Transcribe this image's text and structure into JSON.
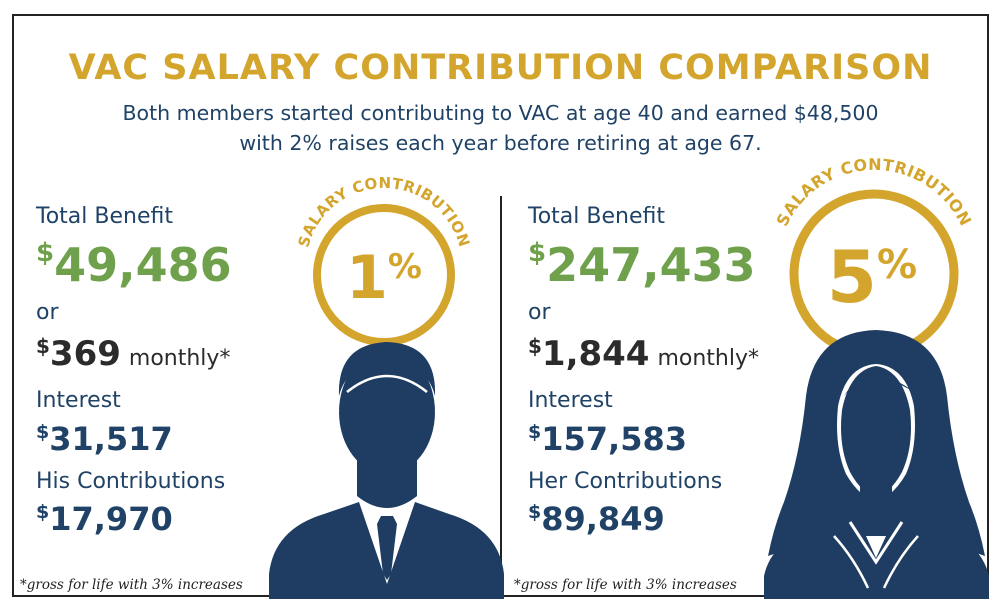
{
  "title": "VAC SALARY CONTRIBUTION COMPARISON",
  "subtitle_line1": "Both members started contributing to VAC at age 40 and earned $48,500",
  "subtitle_line2": "with 2% raises each year before retiring at age 67.",
  "currency_symbol": "$",
  "left": {
    "badge_label": "SALARY CONTRIBUTION",
    "badge_value": "1",
    "badge_percent": "%",
    "total_benefit_label": "Total Benefit",
    "total_benefit_value": "49,486",
    "or_label": "or",
    "monthly_value": "369",
    "monthly_label": "monthly*",
    "interest_label": "Interest",
    "interest_value": "31,517",
    "contributions_label": "His Contributions",
    "contributions_value": "17,970",
    "footnote": "*gross for life with 3% increases",
    "avatar_icon": "man-avatar-icon"
  },
  "right": {
    "badge_label": "SALARY CONTRIBUTION",
    "badge_value": "5",
    "badge_percent": "%",
    "total_benefit_label": "Total Benefit",
    "total_benefit_value": "247,433",
    "or_label": "or",
    "monthly_value": "1,844",
    "monthly_label": "monthly*",
    "interest_label": "Interest",
    "interest_value": "157,583",
    "contributions_label": "Her Contributions",
    "contributions_value": "89,849",
    "footnote": "*gross for life with 3% increases",
    "avatar_icon": "woman-avatar-icon"
  },
  "colors": {
    "gold": "#d4a52c",
    "navy": "#1f4266",
    "green": "#6fa14c",
    "dark": "#2b2b2b"
  }
}
